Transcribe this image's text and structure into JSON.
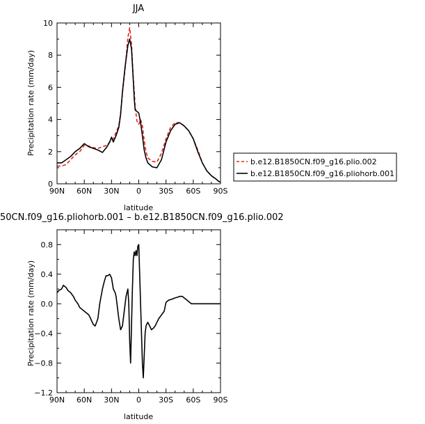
{
  "chart_data": [
    {
      "type": "line",
      "title": "JJA",
      "xlabel": "latitude",
      "ylabel": "Precipitation rate (mm/day)",
      "xlim": [
        90,
        -90
      ],
      "ylim": [
        0,
        10
      ],
      "x_ticks": [
        90,
        60,
        30,
        0,
        -30,
        -60,
        -90
      ],
      "x_tick_labels": [
        "90N",
        "60N",
        "30N",
        "0",
        "30S",
        "60S",
        "90S"
      ],
      "y_ticks": [
        0,
        2,
        4,
        6,
        8,
        10
      ],
      "y_tick_labels": [
        "0",
        "2",
        "4",
        "6",
        "8",
        "10"
      ],
      "legend_position": "right",
      "series": [
        {
          "name": "b.e12.B1850CN.f09_g16.plio.002",
          "color": "#e8201c",
          "dash": "dashed",
          "x": [
            90,
            85,
            80,
            75,
            70,
            65,
            60,
            55,
            50,
            45,
            40,
            35,
            32,
            30,
            28,
            25,
            22,
            20,
            18,
            15,
            12,
            10,
            8,
            6,
            5,
            4,
            2,
            0,
            -2,
            -4,
            -6,
            -8,
            -10,
            -15,
            -20,
            -25,
            -30,
            -35,
            -40,
            -45,
            -50,
            -55,
            -60,
            -65,
            -70,
            -75,
            -80,
            -85,
            -88,
            -90
          ],
          "y": [
            1.1,
            1.1,
            1.2,
            1.5,
            1.8,
            2.0,
            2.4,
            2.35,
            2.25,
            2.2,
            2.3,
            2.4,
            2.6,
            2.7,
            2.8,
            3.2,
            3.6,
            4.4,
            5.6,
            7.2,
            9.1,
            9.7,
            8.7,
            6.5,
            5.8,
            4.8,
            3.9,
            3.7,
            4.0,
            3.6,
            2.7,
            2.0,
            1.6,
            1.4,
            1.35,
            1.9,
            2.8,
            3.5,
            3.8,
            3.8,
            3.6,
            3.3,
            2.8,
            2.1,
            1.3,
            0.8,
            0.5,
            0.3,
            0.15,
            0.1
          ]
        },
        {
          "name": "b.e12.B1850CN.f09_g16.pliohorb.001",
          "color": "#000000",
          "dash": "solid",
          "x": [
            90,
            85,
            80,
            75,
            70,
            65,
            60,
            55,
            50,
            45,
            40,
            35,
            32,
            30,
            28,
            25,
            22,
            20,
            18,
            15,
            12,
            10,
            8,
            6,
            5,
            4,
            2,
            0,
            -2,
            -4,
            -6,
            -8,
            -10,
            -15,
            -20,
            -25,
            -30,
            -35,
            -40,
            -45,
            -50,
            -55,
            -60,
            -65,
            -70,
            -75,
            -80,
            -85,
            -88,
            -90
          ],
          "y": [
            1.3,
            1.3,
            1.5,
            1.7,
            2.0,
            2.2,
            2.5,
            2.3,
            2.2,
            2.1,
            1.95,
            2.3,
            2.6,
            2.9,
            2.6,
            3.0,
            3.5,
            4.3,
            5.7,
            7.3,
            8.6,
            9.0,
            8.4,
            6.4,
            5.3,
            4.6,
            4.5,
            4.4,
            3.8,
            3.0,
            2.1,
            1.6,
            1.3,
            1.05,
            1.0,
            1.5,
            2.6,
            3.3,
            3.7,
            3.8,
            3.6,
            3.3,
            2.8,
            2.0,
            1.3,
            0.8,
            0.5,
            0.3,
            0.15,
            0.1
          ]
        }
      ]
    },
    {
      "type": "line",
      "title": "50CN.f09_g16.pliohorb.001 – b.e12.B1850CN.f09_g16.plio.002",
      "xlabel": "latitude",
      "ylabel": "Precipitation rate (mm/day)",
      "xlim": [
        90,
        -90
      ],
      "ylim": [
        -1.2,
        1.0
      ],
      "x_ticks": [
        90,
        60,
        30,
        0,
        -30,
        -60,
        -90
      ],
      "x_tick_labels": [
        "90N",
        "60N",
        "30N",
        "0",
        "30S",
        "60S",
        "90S"
      ],
      "y_ticks": [
        -1.2,
        -0.8,
        -0.4,
        0.0,
        0.4,
        0.8
      ],
      "y_tick_labels": [
        "−1.2",
        "−0.8",
        "−0.4",
        "0.0",
        "0.4",
        "0.8"
      ],
      "series": [
        {
          "color": "#000000",
          "x": [
            90,
            88,
            85,
            83,
            80,
            78,
            75,
            72,
            70,
            67,
            65,
            62,
            60,
            58,
            55,
            53,
            50,
            48,
            45,
            43,
            40,
            38,
            36,
            34,
            32,
            30,
            28,
            26,
            25,
            24,
            22,
            20,
            18,
            16,
            14,
            12,
            11,
            10,
            9,
            8,
            7,
            6,
            5,
            4,
            3,
            2,
            1,
            0,
            -1,
            -2,
            -3,
            -4,
            -5,
            -6,
            -7,
            -8,
            -9,
            -10,
            -12,
            -14,
            -16,
            -18,
            -20,
            -22,
            -25,
            -28,
            -30,
            -33,
            -36,
            -38,
            -40,
            -43,
            -45,
            -48,
            -50,
            -53,
            -55,
            -58,
            -60,
            -63,
            -65,
            -68,
            -70,
            -73,
            -75,
            -78,
            -80,
            -83,
            -85,
            -88,
            -90
          ],
          "y": [
            0.15,
            0.18,
            0.2,
            0.25,
            0.22,
            0.18,
            0.15,
            0.1,
            0.05,
            0.0,
            -0.05,
            -0.08,
            -0.1,
            -0.12,
            -0.15,
            -0.2,
            -0.28,
            -0.3,
            -0.2,
            0.0,
            0.2,
            0.3,
            0.38,
            0.38,
            0.4,
            0.35,
            0.2,
            0.15,
            0.1,
            0.0,
            -0.2,
            -0.35,
            -0.3,
            -0.1,
            0.1,
            0.2,
            0.0,
            -0.5,
            -0.8,
            -0.3,
            0.2,
            0.6,
            0.7,
            0.65,
            0.72,
            0.65,
            0.78,
            0.8,
            0.4,
            0.0,
            -0.4,
            -0.8,
            -1.0,
            -0.7,
            -0.4,
            -0.3,
            -0.27,
            -0.25,
            -0.3,
            -0.35,
            -0.33,
            -0.3,
            -0.25,
            -0.2,
            -0.15,
            -0.1,
            0.02,
            0.05,
            0.06,
            0.07,
            0.08,
            0.09,
            0.1,
            0.1,
            0.08,
            0.05,
            0.03,
            0.0,
            0.0,
            0.0,
            0.0,
            0.0,
            0.0,
            0.0,
            0.0,
            0.0,
            0.0,
            0.0,
            0.0,
            0.0,
            0.0
          ]
        }
      ]
    }
  ]
}
